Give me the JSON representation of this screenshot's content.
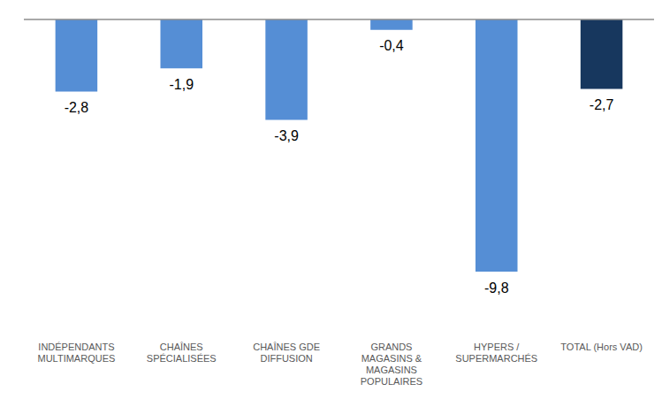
{
  "chart_data": {
    "type": "bar",
    "categories": [
      "INDÉPENDANTS\nMULTIMARQUES",
      "CHAÎNES\nSPÉCIALISÉES",
      "CHAÎNES GDE\nDIFFUSION",
      "GRANDS\nMAGASINS &\nMAGASINS\nPOPULAIRES",
      "HYPERS /\nSUPERMARCHÉS",
      "TOTAL (Hors VAD)"
    ],
    "values": [
      -2.8,
      -1.9,
      -3.9,
      -0.4,
      -9.8,
      -2.7
    ],
    "value_labels": [
      "-2,8",
      "-1,9",
      "-3,9",
      "-0,4",
      "-9,8",
      "-2,7"
    ],
    "colors": [
      "#558ed5",
      "#558ed5",
      "#558ed5",
      "#558ed5",
      "#558ed5",
      "#17375e"
    ],
    "ylim": [
      -12,
      0
    ],
    "yticks": [
      -12,
      0
    ],
    "grid": false,
    "data_labels": true,
    "tick_labels": "x"
  }
}
